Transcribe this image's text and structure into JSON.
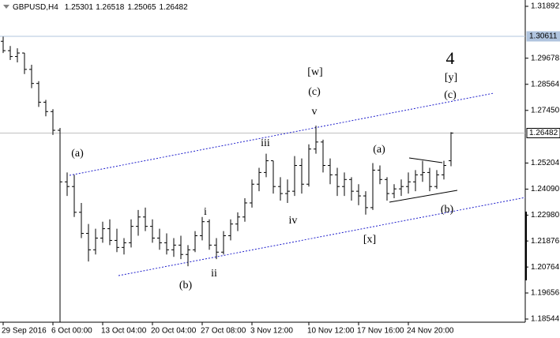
{
  "chart_data": {
    "type": "ohlc",
    "title": "GBPUSD,H4",
    "categories": [
      "29 Sep 2016",
      null,
      null,
      null,
      null,
      null,
      null,
      "6 Oct 00:00",
      null,
      null,
      null,
      null,
      null,
      null,
      "13 Oct 04:00",
      null,
      null,
      null,
      null,
      null,
      null,
      "20 Oct 04:00",
      null,
      null,
      null,
      null,
      null,
      null,
      "27 Oct 08:00",
      null,
      null,
      null,
      null,
      null,
      null,
      "3 Nov 12:00",
      null,
      null,
      null,
      null,
      null,
      null,
      null,
      "10 Nov 12:00",
      null,
      null,
      null,
      null,
      null,
      null,
      "17 Nov 16:00",
      null,
      null,
      null,
      null,
      null,
      null,
      "24 Nov 20:00",
      null,
      null,
      null,
      null,
      null,
      null
    ],
    "open": [
      1.304,
      1.3,
      1.2975,
      1.299,
      1.292,
      1.286,
      1.278,
      1.274,
      1.266,
      1.244,
      1.242,
      1.231,
      1.222,
      1.215,
      1.22,
      1.224,
      1.219,
      1.216,
      1.218,
      1.225,
      1.229,
      1.225,
      1.22,
      1.218,
      1.215,
      1.217,
      1.213,
      1.215,
      1.221,
      1.227,
      1.217,
      1.214,
      1.221,
      1.226,
      1.229,
      1.235,
      1.243,
      1.248,
      1.253,
      1.242,
      1.239,
      1.24,
      1.251,
      1.243,
      1.258,
      1.261,
      1.251,
      1.247,
      1.242,
      1.245,
      1.24,
      1.238,
      1.233,
      1.249,
      1.245,
      1.239,
      1.241,
      1.242,
      1.244,
      1.247,
      1.248,
      1.242,
      1.247,
      1.25301
    ],
    "high": [
      1.306,
      1.302,
      1.301,
      1.299,
      1.294,
      1.287,
      1.279,
      1.275,
      1.267,
      1.248,
      1.247,
      1.235,
      1.226,
      1.224,
      1.227,
      1.228,
      1.224,
      1.22,
      1.228,
      1.232,
      1.233,
      1.228,
      1.224,
      1.222,
      1.22,
      1.221,
      1.217,
      1.223,
      1.229,
      1.228,
      1.22,
      1.223,
      1.228,
      1.231,
      1.237,
      1.245,
      1.25,
      1.256,
      1.253,
      1.246,
      1.245,
      1.255,
      1.254,
      1.26,
      1.268,
      1.262,
      1.254,
      1.25,
      1.248,
      1.246,
      1.243,
      1.24,
      1.252,
      1.251,
      1.246,
      1.243,
      1.245,
      1.248,
      1.249,
      1.253,
      1.25,
      1.249,
      1.253,
      1.26518
    ],
    "low": [
      1.299,
      1.296,
      1.295,
      1.29,
      1.284,
      1.276,
      1.272,
      1.264,
      1.1841,
      1.238,
      1.229,
      1.22,
      1.21,
      1.213,
      1.218,
      1.217,
      1.214,
      1.213,
      1.216,
      1.221,
      1.223,
      1.218,
      1.215,
      1.213,
      1.212,
      1.211,
      1.208,
      1.214,
      1.219,
      1.215,
      1.211,
      1.213,
      1.219,
      1.223,
      1.227,
      1.233,
      1.24,
      1.246,
      1.239,
      1.236,
      1.235,
      1.238,
      1.239,
      1.242,
      1.256,
      1.248,
      1.243,
      1.238,
      1.238,
      1.236,
      1.234,
      1.23,
      1.232,
      1.243,
      1.236,
      1.237,
      1.238,
      1.239,
      1.24,
      1.244,
      1.24,
      1.241,
      1.245,
      1.25065
    ],
    "close": [
      1.3,
      1.2975,
      1.299,
      1.292,
      1.286,
      1.278,
      1.274,
      1.266,
      1.244,
      1.242,
      1.231,
      1.222,
      1.215,
      1.22,
      1.224,
      1.219,
      1.216,
      1.218,
      1.225,
      1.229,
      1.225,
      1.22,
      1.218,
      1.215,
      1.217,
      1.213,
      1.215,
      1.221,
      1.227,
      1.217,
      1.214,
      1.221,
      1.226,
      1.229,
      1.235,
      1.243,
      1.248,
      1.253,
      1.242,
      1.239,
      1.24,
      1.251,
      1.243,
      1.258,
      1.261,
      1.251,
      1.247,
      1.242,
      1.245,
      1.24,
      1.238,
      1.233,
      1.249,
      1.245,
      1.239,
      1.241,
      1.242,
      1.244,
      1.247,
      1.248,
      1.242,
      1.247,
      1.251,
      1.26482
    ],
    "color": "#000000",
    "ylim": [
      1.18409,
      1.32162
    ],
    "yticks": [
      1.31892,
      1.29678,
      1.28564,
      {
        "value": 1.2745,
        "label": "1.27450"
      },
      1.25204,
      {
        "value": 1.2409,
        "label": "1.24090"
      },
      {
        "value": 1.2298,
        "label": "1.22980"
      },
      1.21876,
      1.20764,
      1.19656,
      1.18544
    ],
    "hlines": [
      {
        "value": 1.30611,
        "color": "#b0c4de"
      },
      {
        "value": 1.26482,
        "color": "#c0c0c0"
      }
    ],
    "annotations": [
      {
        "text": "(a)",
        "color": "#0000dd"
      },
      {
        "text": "(b)",
        "color": "#0000dd"
      },
      {
        "text": "i",
        "color": "#e00000"
      },
      {
        "text": "ii",
        "color": "#e00000"
      },
      {
        "text": "iii",
        "color": "#e00000"
      },
      {
        "text": "iv",
        "color": "#e00000"
      },
      {
        "text": "v",
        "color": "#e00000"
      },
      {
        "text": "(c)",
        "color": "#0000dd"
      },
      {
        "text": "[w]",
        "color": "#1a8a1a"
      },
      {
        "text": "(a)",
        "color": "#0000dd"
      },
      {
        "text": "[x]",
        "color": "#1a8a1a"
      },
      {
        "text": "(b)",
        "color": "#0000dd"
      },
      {
        "text": "(c)",
        "color": "#0000dd"
      },
      {
        "text": "[y]",
        "color": "#1a8a1a"
      },
      {
        "text": "4",
        "color": "#e00000"
      }
    ]
  }
}
